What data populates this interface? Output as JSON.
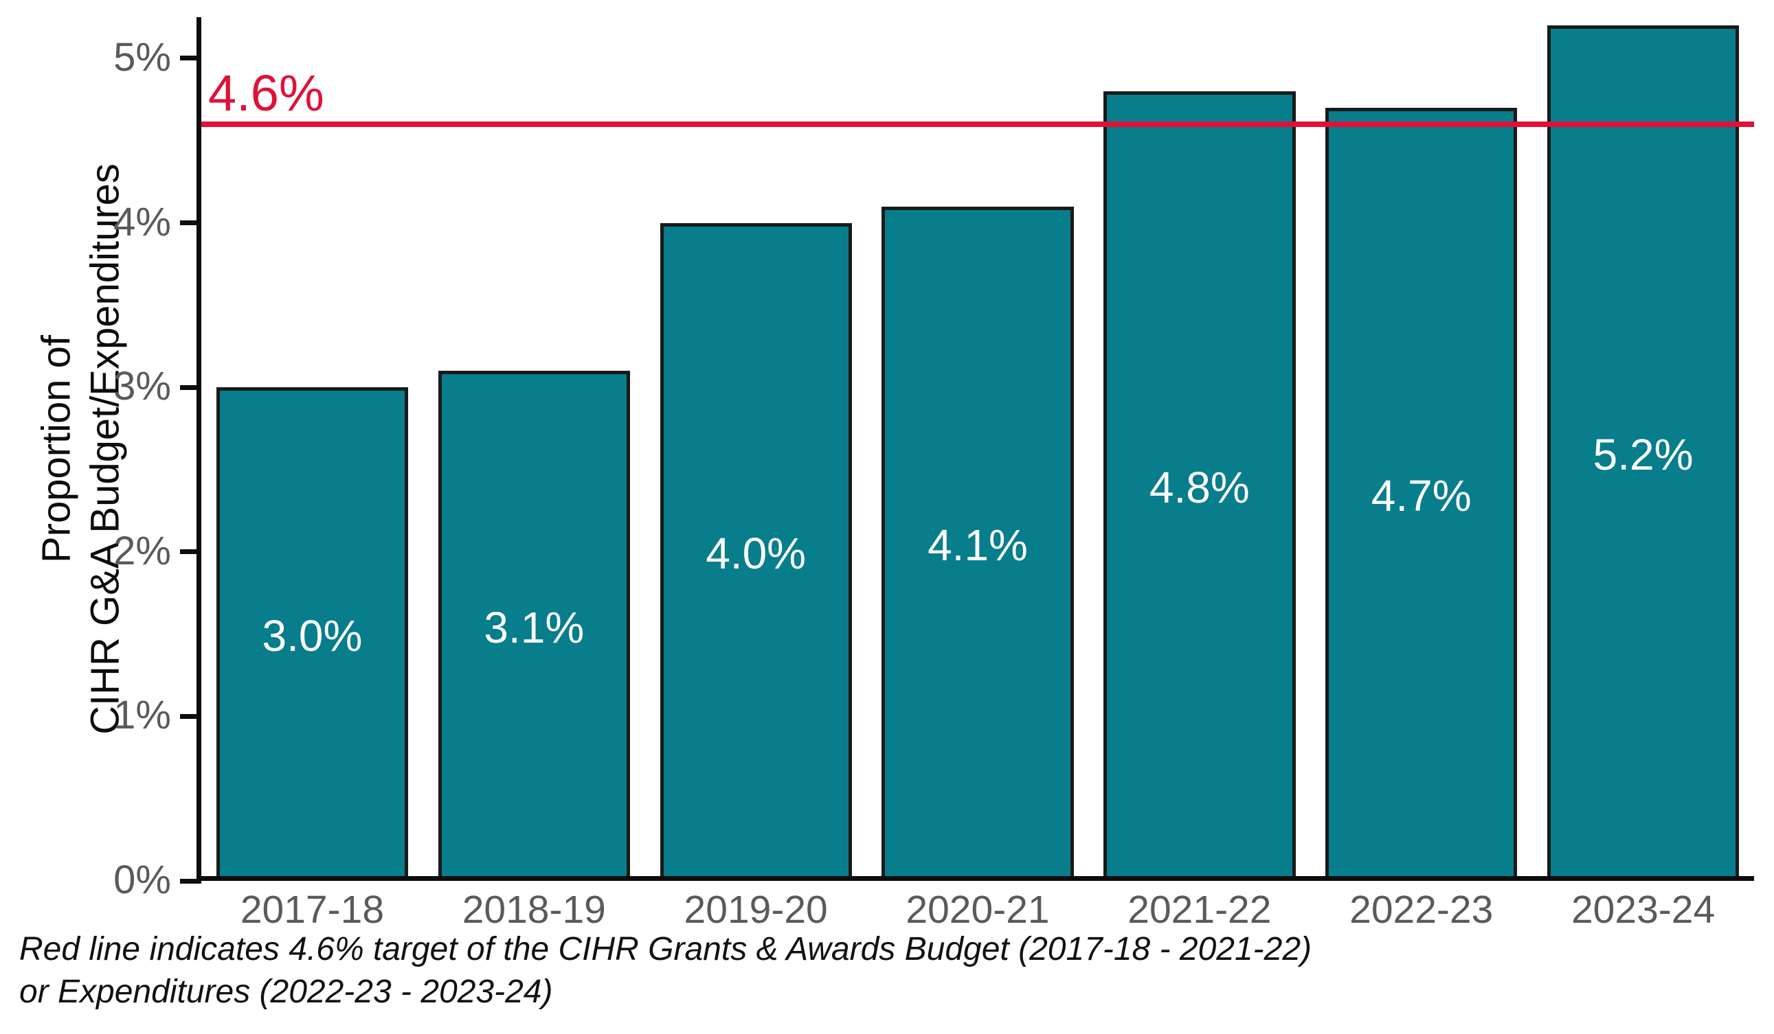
{
  "figure": {
    "y_axis_title_line1": "Proportion of",
    "y_axis_title_line2": "CIHR G&A Budget/Expenditures",
    "caption_line1": "Red line indicates 4.6% target of the CIHR Grants & Awards Budget (2017-18 - 2021-22)",
    "caption_line2": "or Expenditures (2022-23 - 2023-24)"
  },
  "chart_data": {
    "type": "bar",
    "title": "",
    "xlabel": "",
    "ylabel": "Proportion of CIHR G&A Budget/Expenditures",
    "categories": [
      "2017-18",
      "2018-19",
      "2019-20",
      "2020-21",
      "2021-22",
      "2022-23",
      "2023-24"
    ],
    "values": [
      3.0,
      3.1,
      4.0,
      4.1,
      4.8,
      4.7,
      5.2
    ],
    "bar_labels": [
      "3.0%",
      "3.1%",
      "4.0%",
      "4.1%",
      "4.8%",
      "4.7%",
      "5.2%"
    ],
    "y_ticks": [
      {
        "value": 0,
        "label": "0%"
      },
      {
        "value": 1,
        "label": "1%"
      },
      {
        "value": 2,
        "label": "2%"
      },
      {
        "value": 3,
        "label": "3%"
      },
      {
        "value": 4,
        "label": "4%"
      },
      {
        "value": 5,
        "label": "5%"
      }
    ],
    "ylim": [
      0,
      5.25
    ],
    "grid": false,
    "legend": false,
    "reference_line": {
      "value": 4.6,
      "label": "4.6%",
      "color": "#e01137"
    },
    "colors": {
      "bar_fill": "#087d8c",
      "bar_border": "#1a1a1a",
      "axis": "#0d0d0d",
      "tick_label": "#5a5a5a",
      "value_label": "#ffffff"
    }
  }
}
